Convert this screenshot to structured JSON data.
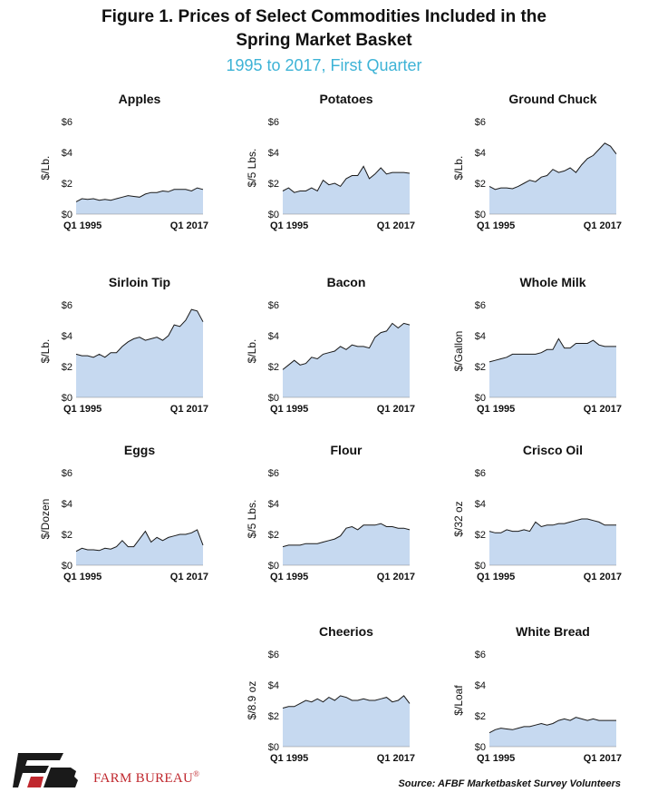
{
  "header": {
    "title_line1": "Figure 1. Prices of Select Commodities Included in the",
    "title_line2": "Spring Market Basket",
    "subtitle": "1995 to 2017, First Quarter"
  },
  "footer": {
    "brand": "FARM BUREAU",
    "brand_mark": "®",
    "logo_letters": "FB",
    "source": "Source: AFBF Marketbasket Survey Volunteers"
  },
  "colors": {
    "area_fill": "#c6d9f0",
    "area_line": "#1a1a1a",
    "subtitle": "#3db3d6",
    "brand": "#c0282e"
  },
  "chart_data": [
    {
      "type": "area",
      "title": "Apples",
      "ylabel": "$/Lb.",
      "x_start": "Q1 1995",
      "x_end": "Q1 2017",
      "ylim": [
        0,
        6
      ],
      "yticks": [
        "$0",
        "$2",
        "$4",
        "$6"
      ],
      "grid": false,
      "values": [
        0.8,
        1.0,
        0.95,
        1.0,
        0.9,
        0.95,
        0.9,
        1.0,
        1.1,
        1.2,
        1.15,
        1.1,
        1.3,
        1.4,
        1.4,
        1.5,
        1.45,
        1.6,
        1.6,
        1.6,
        1.5,
        1.7,
        1.6
      ]
    },
    {
      "type": "area",
      "title": "Potatoes",
      "ylabel": "$/5 Lbs.",
      "x_start": "Q1 1995",
      "x_end": "Q1 2017",
      "ylim": [
        0,
        6
      ],
      "yticks": [
        "$0",
        "$2",
        "$4",
        "$6"
      ],
      "grid": false,
      "values": [
        1.5,
        1.7,
        1.4,
        1.5,
        1.5,
        1.7,
        1.5,
        2.2,
        1.9,
        2.0,
        1.8,
        2.3,
        2.5,
        2.5,
        3.1,
        2.3,
        2.6,
        3.0,
        2.6,
        2.7,
        2.7,
        2.7,
        2.65
      ]
    },
    {
      "type": "area",
      "title": "Ground Chuck",
      "ylabel": "$/Lb.",
      "x_start": "Q1 1995",
      "x_end": "Q1 2017",
      "ylim": [
        0,
        6
      ],
      "yticks": [
        "$0",
        "$2",
        "$4",
        "$6"
      ],
      "grid": false,
      "values": [
        1.8,
        1.6,
        1.7,
        1.7,
        1.65,
        1.8,
        2.0,
        2.2,
        2.1,
        2.4,
        2.5,
        2.9,
        2.7,
        2.8,
        3.0,
        2.7,
        3.2,
        3.6,
        3.8,
        4.2,
        4.6,
        4.4,
        3.9
      ]
    },
    {
      "type": "area",
      "title": "Sirloin Tip",
      "ylabel": "$/Lb.",
      "x_start": "Q1 1995",
      "x_end": "Q1 2017",
      "ylim": [
        0,
        6
      ],
      "yticks": [
        "$0",
        "$2",
        "$4",
        "$6"
      ],
      "grid": false,
      "values": [
        2.8,
        2.7,
        2.7,
        2.6,
        2.8,
        2.6,
        2.9,
        2.9,
        3.3,
        3.6,
        3.8,
        3.9,
        3.7,
        3.8,
        3.9,
        3.7,
        4.0,
        4.7,
        4.6,
        5.0,
        5.7,
        5.6,
        4.9
      ]
    },
    {
      "type": "area",
      "title": "Bacon",
      "ylabel": "$/Lb.",
      "x_start": "Q1 1995",
      "x_end": "Q1 2017",
      "ylim": [
        0,
        6
      ],
      "yticks": [
        "$0",
        "$2",
        "$4",
        "$6"
      ],
      "grid": false,
      "values": [
        1.8,
        2.1,
        2.4,
        2.1,
        2.2,
        2.6,
        2.5,
        2.8,
        2.9,
        3.0,
        3.3,
        3.1,
        3.4,
        3.3,
        3.3,
        3.2,
        3.9,
        4.2,
        4.3,
        4.8,
        4.5,
        4.8,
        4.7
      ]
    },
    {
      "type": "area",
      "title": "Whole Milk",
      "ylabel": "$/Gallon",
      "x_start": "Q1 1995",
      "x_end": "Q1 2017",
      "ylim": [
        0,
        6
      ],
      "yticks": [
        "$0",
        "$2",
        "$4",
        "$6"
      ],
      "grid": false,
      "values": [
        2.3,
        2.4,
        2.5,
        2.6,
        2.8,
        2.8,
        2.8,
        2.8,
        2.8,
        2.9,
        3.1,
        3.1,
        3.8,
        3.2,
        3.2,
        3.5,
        3.5,
        3.5,
        3.7,
        3.4,
        3.3,
        3.3,
        3.3
      ]
    },
    {
      "type": "area",
      "title": "Eggs",
      "ylabel": "$/Dozen",
      "x_start": "Q1 1995",
      "x_end": "Q1 2017",
      "ylim": [
        0,
        6
      ],
      "yticks": [
        "$0",
        "$2",
        "$4",
        "$6"
      ],
      "grid": false,
      "values": [
        0.9,
        1.1,
        1.0,
        1.0,
        0.95,
        1.1,
        1.05,
        1.2,
        1.6,
        1.2,
        1.2,
        1.7,
        2.2,
        1.5,
        1.8,
        1.6,
        1.8,
        1.9,
        2.0,
        2.0,
        2.1,
        2.3,
        1.3
      ]
    },
    {
      "type": "area",
      "title": "Flour",
      "ylabel": "$/5 Lbs.",
      "x_start": "Q1 1995",
      "x_end": "Q1 2017",
      "ylim": [
        0,
        6
      ],
      "yticks": [
        "$0",
        "$2",
        "$4",
        "$6"
      ],
      "grid": false,
      "values": [
        1.2,
        1.3,
        1.3,
        1.3,
        1.4,
        1.4,
        1.4,
        1.5,
        1.6,
        1.7,
        1.9,
        2.4,
        2.5,
        2.3,
        2.6,
        2.6,
        2.6,
        2.7,
        2.5,
        2.5,
        2.4,
        2.4,
        2.3
      ]
    },
    {
      "type": "area",
      "title": "Crisco Oil",
      "ylabel": "$/32 oz",
      "x_start": "Q1 1995",
      "x_end": "Q1 2017",
      "ylim": [
        0,
        6
      ],
      "yticks": [
        "$0",
        "$2",
        "$4",
        "$6"
      ],
      "grid": false,
      "values": [
        2.2,
        2.1,
        2.1,
        2.3,
        2.2,
        2.2,
        2.3,
        2.2,
        2.8,
        2.5,
        2.6,
        2.6,
        2.7,
        2.7,
        2.8,
        2.9,
        3.0,
        3.0,
        2.9,
        2.8,
        2.6,
        2.6,
        2.6
      ]
    },
    {
      "type": "area",
      "title": "Cheerios",
      "ylabel": "$/8.9 oz",
      "x_start": "Q1 1995",
      "x_end": "Q1 2017",
      "ylim": [
        0,
        6
      ],
      "yticks": [
        "$0",
        "$2",
        "$4",
        "$6"
      ],
      "grid": false,
      "values": [
        2.5,
        2.6,
        2.6,
        2.8,
        3.0,
        2.9,
        3.1,
        2.9,
        3.2,
        3.0,
        3.3,
        3.2,
        3.0,
        3.0,
        3.1,
        3.0,
        3.0,
        3.1,
        3.2,
        2.9,
        3.0,
        3.3,
        2.8
      ]
    },
    {
      "type": "area",
      "title": "White Bread",
      "ylabel": "$/Loaf",
      "x_start": "Q1 1995",
      "x_end": "Q1 2017",
      "ylim": [
        0,
        6
      ],
      "yticks": [
        "$0",
        "$2",
        "$4",
        "$6"
      ],
      "grid": false,
      "values": [
        0.9,
        1.1,
        1.2,
        1.15,
        1.1,
        1.2,
        1.3,
        1.3,
        1.4,
        1.5,
        1.4,
        1.5,
        1.7,
        1.8,
        1.7,
        1.9,
        1.8,
        1.7,
        1.8,
        1.7,
        1.7,
        1.7,
        1.7
      ]
    }
  ]
}
